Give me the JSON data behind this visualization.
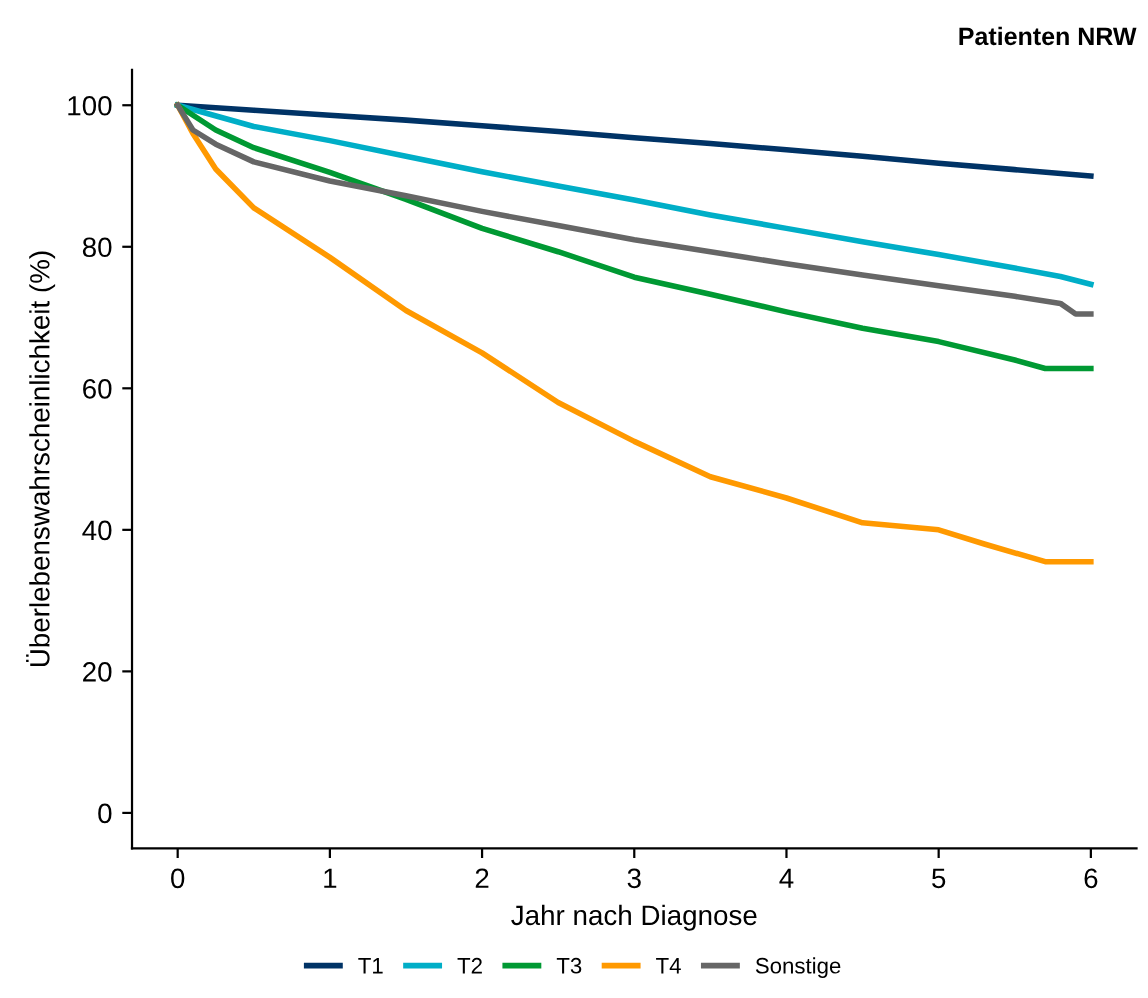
{
  "chart_data": {
    "type": "line",
    "title": "Patienten NRW",
    "xlabel": "Jahr nach Diagnose",
    "ylabel": "Überlebenswahrscheinlichkeit (%)",
    "xlim": [
      -0.3,
      6.3
    ],
    "ylim": [
      -5,
      105
    ],
    "xticks": [
      0,
      1,
      2,
      3,
      4,
      5,
      6
    ],
    "yticks": [
      0,
      20,
      40,
      60,
      80,
      100
    ],
    "grid": false,
    "legend": "bottom",
    "line_style": "solid",
    "marker": "none",
    "series": [
      {
        "name": "T1",
        "color": "#003366",
        "x": [
          0,
          0.5,
          1,
          1.5,
          2,
          2.5,
          3,
          3.5,
          4,
          4.5,
          5,
          5.5,
          6
        ],
        "values": [
          100,
          99.3,
          98.6,
          97.9,
          97.1,
          96.3,
          95.4,
          94.6,
          93.7,
          92.8,
          91.8,
          90.9,
          90.0
        ]
      },
      {
        "name": "T2",
        "color": "#00aec7",
        "x": [
          0,
          0.5,
          1,
          1.5,
          2,
          2.5,
          3,
          3.5,
          4,
          4.5,
          5,
          5.5,
          5.8,
          6
        ],
        "values": [
          100,
          97.0,
          95.0,
          92.8,
          90.6,
          88.6,
          86.6,
          84.5,
          82.6,
          80.7,
          78.9,
          77.0,
          75.8,
          74.7
        ]
      },
      {
        "name": "T3",
        "color": "#009933",
        "x": [
          0,
          0.25,
          0.5,
          1,
          1.5,
          2,
          2.5,
          3,
          3.5,
          4,
          4.5,
          5,
          5.5,
          5.7,
          6
        ],
        "values": [
          100,
          96.5,
          94.0,
          90.5,
          86.7,
          82.6,
          79.3,
          75.7,
          73.3,
          70.8,
          68.5,
          66.6,
          64.0,
          62.8,
          62.8
        ]
      },
      {
        "name": "T4",
        "color": "#ff9900",
        "x": [
          0,
          0.1,
          0.25,
          0.5,
          1,
          1.5,
          2,
          2.5,
          3,
          3.5,
          4,
          4.5,
          5,
          5.3,
          5.7,
          6
        ],
        "values": [
          100,
          96,
          91,
          85.5,
          78.5,
          71,
          65,
          58,
          52.5,
          47.5,
          44.5,
          41,
          40,
          38,
          35.5,
          35.5
        ]
      },
      {
        "name": "Sonstige",
        "color": "#666666",
        "x": [
          0,
          0.1,
          0.25,
          0.5,
          1,
          1.5,
          2,
          2.5,
          3,
          3.5,
          4,
          4.5,
          5,
          5.5,
          5.8,
          5.9,
          6
        ],
        "values": [
          100,
          96.5,
          94.5,
          92,
          89.3,
          87.2,
          85,
          83,
          81,
          79.3,
          77.6,
          76,
          74.5,
          73,
          72,
          70.5,
          70.5
        ]
      }
    ]
  }
}
